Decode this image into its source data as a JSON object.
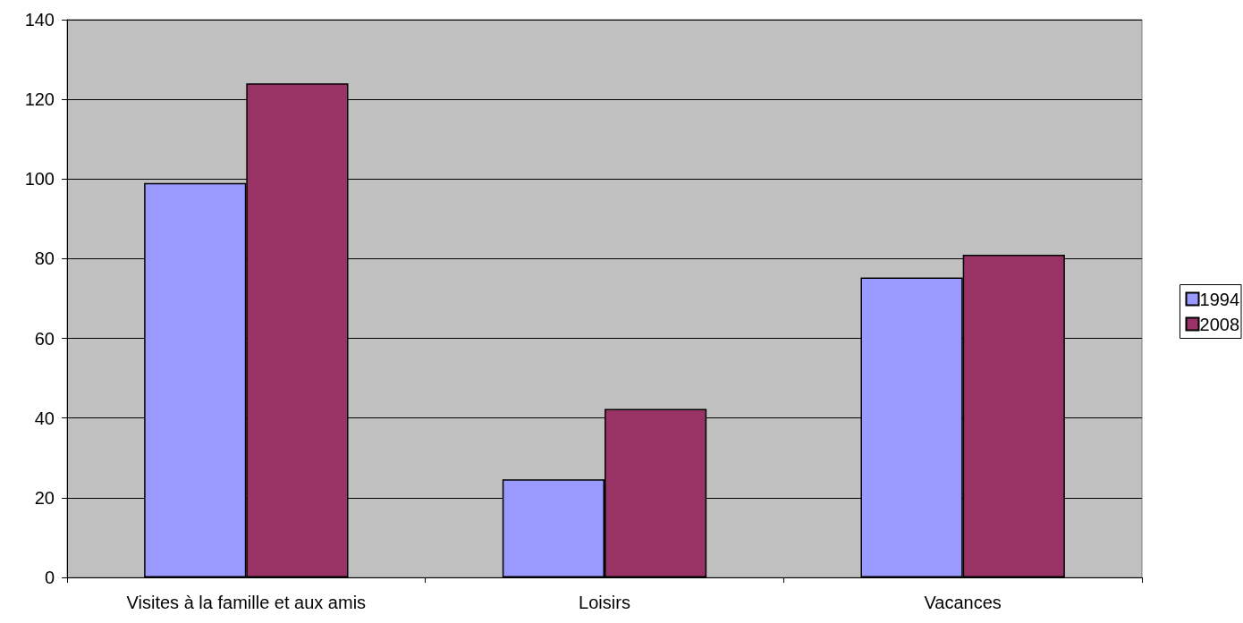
{
  "chart_data": {
    "type": "bar",
    "categories": [
      "Visites à la famille et aux amis",
      "Loisirs",
      "Vacances"
    ],
    "series": [
      {
        "name": "1994",
        "color": "#9999ff",
        "values": [
          99,
          24.6,
          75.3
        ]
      },
      {
        "name": "2008",
        "color": "#993366",
        "values": [
          124,
          42.3,
          81
        ]
      }
    ],
    "ylim": [
      0,
      140
    ],
    "yticks": [
      0,
      20,
      40,
      60,
      80,
      100,
      120,
      140
    ],
    "grid": "y",
    "legend": "right"
  }
}
